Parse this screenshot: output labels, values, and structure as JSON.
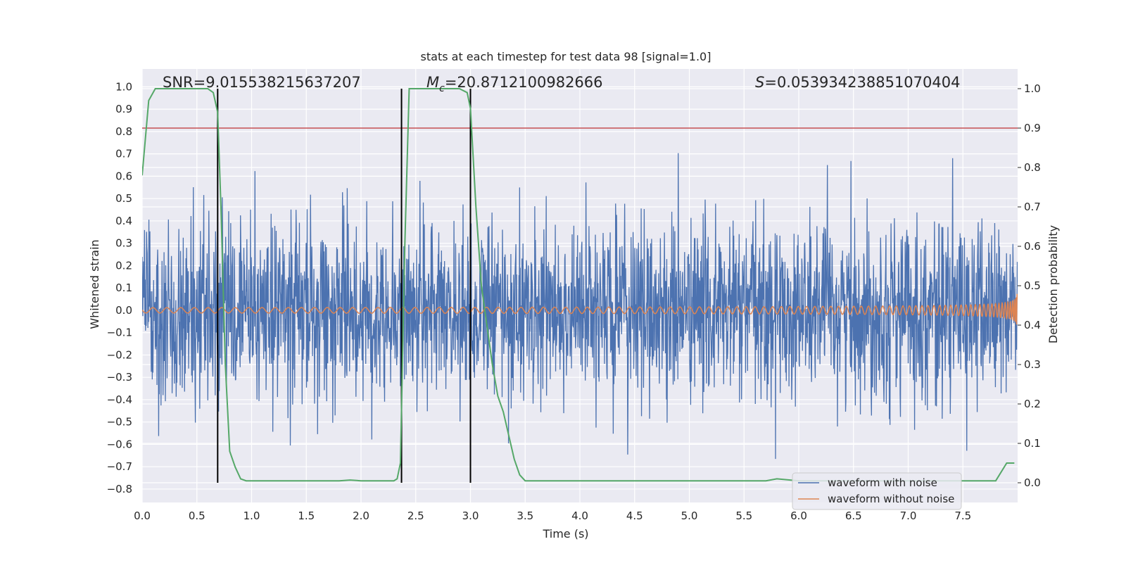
{
  "chart_data": {
    "type": "line",
    "title": "stats at each timestep for test data 98 [signal=1.0]",
    "xlabel": "Time (s)",
    "ylabel": "Whitened strain",
    "y2label": "Detection probability",
    "xlim": [
      0.0,
      8.0
    ],
    "ylim": [
      -0.86,
      1.08
    ],
    "y2lim": [
      -0.05,
      1.05
    ],
    "xticks": [
      "0.0",
      "0.5",
      "1.0",
      "1.5",
      "2.0",
      "2.5",
      "3.0",
      "3.5",
      "4.0",
      "4.5",
      "5.0",
      "5.5",
      "6.0",
      "6.5",
      "7.0",
      "7.5"
    ],
    "yticks": [
      "1.0",
      "0.9",
      "0.8",
      "0.7",
      "0.6",
      "0.5",
      "0.4",
      "0.3",
      "0.2",
      "0.1",
      "0.0",
      "−0.1",
      "−0.2",
      "−0.3",
      "−0.4",
      "−0.5",
      "−0.6",
      "−0.7",
      "−0.8"
    ],
    "y2ticks": [
      "1.0",
      "0.9",
      "0.8",
      "0.7",
      "0.6",
      "0.5",
      "0.4",
      "0.3",
      "0.2",
      "0.1",
      "0.0"
    ],
    "annotations": {
      "snr": "SNR=9.015538215637207",
      "mc_symbol": "M",
      "mc_sub": "c",
      "mc_value": "=20.8712100982666",
      "s_symbol": "S",
      "s_value": "=0.053934238851070404"
    },
    "threshold_y2": 0.9,
    "vlines_x": [
      0.69,
      2.37,
      3.0
    ],
    "detection_probability": {
      "x": [
        0.0,
        0.06,
        0.12,
        0.2,
        0.3,
        0.4,
        0.5,
        0.6,
        0.65,
        0.69,
        0.72,
        0.76,
        0.8,
        0.85,
        0.9,
        0.95,
        1.0,
        1.2,
        1.4,
        1.6,
        1.8,
        1.9,
        2.0,
        2.1,
        2.2,
        2.3,
        2.33,
        2.36,
        2.4,
        2.44,
        2.5,
        2.6,
        2.7,
        2.8,
        2.9,
        2.97,
        3.0,
        3.05,
        3.1,
        3.15,
        3.2,
        3.25,
        3.3,
        3.35,
        3.4,
        3.45,
        3.5,
        3.7,
        4.0,
        4.5,
        5.0,
        5.5,
        5.7,
        5.8,
        6.0,
        6.5,
        7.0,
        7.5,
        7.7,
        7.8,
        7.9,
        7.97
      ],
      "y": [
        0.78,
        0.97,
        1.0,
        1.0,
        1.0,
        1.0,
        1.0,
        1.0,
        0.99,
        0.94,
        0.7,
        0.3,
        0.08,
        0.04,
        0.01,
        0.005,
        0.005,
        0.005,
        0.005,
        0.005,
        0.005,
        0.007,
        0.005,
        0.005,
        0.005,
        0.005,
        0.01,
        0.05,
        0.6,
        1.0,
        1.0,
        1.0,
        1.0,
        1.0,
        1.0,
        0.99,
        0.95,
        0.7,
        0.5,
        0.4,
        0.3,
        0.22,
        0.18,
        0.12,
        0.06,
        0.02,
        0.005,
        0.005,
        0.005,
        0.005,
        0.005,
        0.005,
        0.005,
        0.01,
        0.005,
        0.005,
        0.005,
        0.005,
        0.005,
        0.005,
        0.05,
        0.05
      ]
    },
    "series": [
      {
        "name": "waveform with noise",
        "color": "#4c72b0"
      },
      {
        "name": "waveform without noise",
        "color": "#dd8452"
      }
    ],
    "colors": {
      "plot_bg": "#eaeaf2",
      "grid": "#ffffff",
      "prob_line": "#55a868",
      "threshold": "#c44e52",
      "vline": "#000000"
    },
    "legend": {
      "position": "lower-right"
    }
  }
}
